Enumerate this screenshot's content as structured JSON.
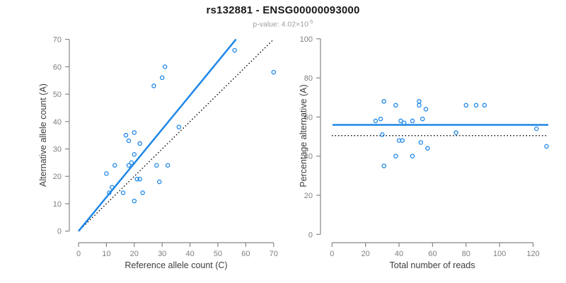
{
  "header": {
    "title": "rs132881 - ENSG00000093000",
    "pvalue_prefix": "p-value: 4.02×10",
    "pvalue_exponent": "-5"
  },
  "colors": {
    "accent": "#1E87E8",
    "identity_line": "#000000",
    "axis": "#878787",
    "tick_text": "#7F7F7F",
    "label_text": "#3D3D3D",
    "title_text": "#1A1A1A",
    "subtitle_text": "#9E9E9E"
  },
  "chart_data": [
    {
      "type": "scatter",
      "title": "rs132881 - ENSG00000093000",
      "subtitle": "p-value: 4.02×10^-5",
      "xlabel": "Reference allele count (C)",
      "ylabel": "Alternative allele count (A)",
      "xlim": [
        0,
        70
      ],
      "ylim": [
        0,
        70
      ],
      "xticks": [
        0,
        10,
        20,
        30,
        40,
        50,
        60,
        70
      ],
      "yticks": [
        0,
        10,
        20,
        30,
        40,
        50,
        60,
        70
      ],
      "grid": false,
      "legend": false,
      "points": [
        [
          56,
          66
        ],
        [
          31,
          60
        ],
        [
          70,
          58
        ],
        [
          30,
          56
        ],
        [
          27,
          53
        ],
        [
          36,
          38
        ],
        [
          20,
          36
        ],
        [
          17,
          35
        ],
        [
          18,
          33
        ],
        [
          22,
          32
        ],
        [
          20,
          28
        ],
        [
          19,
          25
        ],
        [
          13,
          24
        ],
        [
          18,
          24
        ],
        [
          28,
          24
        ],
        [
          32,
          24
        ],
        [
          10,
          21
        ],
        [
          21,
          19
        ],
        [
          22,
          19
        ],
        [
          29,
          18
        ],
        [
          12,
          16
        ],
        [
          11,
          14
        ],
        [
          16,
          14
        ],
        [
          23,
          14
        ],
        [
          20,
          11
        ]
      ],
      "regression_line": {
        "from": [
          0,
          0
        ],
        "to": [
          56.5,
          70
        ],
        "style": "solid-blue"
      },
      "identity_line": {
        "from": [
          0,
          0
        ],
        "to": [
          70,
          70
        ],
        "style": "dotted-black"
      }
    },
    {
      "type": "scatter",
      "xlabel": "Total number of reads",
      "ylabel": "Percentage alternative (A)",
      "xlim": [
        0,
        130
      ],
      "ylim": [
        0,
        100
      ],
      "xticks": [
        0,
        20,
        40,
        60,
        80,
        100,
        120
      ],
      "yticks": [
        0,
        20,
        40,
        60,
        80,
        100
      ],
      "grid": false,
      "legend": false,
      "points": [
        [
          26,
          58
        ],
        [
          29,
          59
        ],
        [
          31,
          68
        ],
        [
          31,
          35
        ],
        [
          30,
          51
        ],
        [
          38,
          66
        ],
        [
          38,
          40
        ],
        [
          40,
          48
        ],
        [
          42,
          48
        ],
        [
          41,
          58
        ],
        [
          43,
          57
        ],
        [
          48,
          58
        ],
        [
          48,
          40
        ],
        [
          52,
          68
        ],
        [
          52,
          66
        ],
        [
          53,
          47
        ],
        [
          54,
          59
        ],
        [
          56,
          64
        ],
        [
          57,
          44
        ],
        [
          74,
          52
        ],
        [
          80,
          66
        ],
        [
          86,
          66
        ],
        [
          91,
          66
        ],
        [
          122,
          54
        ],
        [
          128,
          45
        ]
      ],
      "hline_solid": {
        "y": 56,
        "style": "solid-blue"
      },
      "hline_dotted": {
        "y": 50.5,
        "style": "dotted-black"
      }
    }
  ]
}
